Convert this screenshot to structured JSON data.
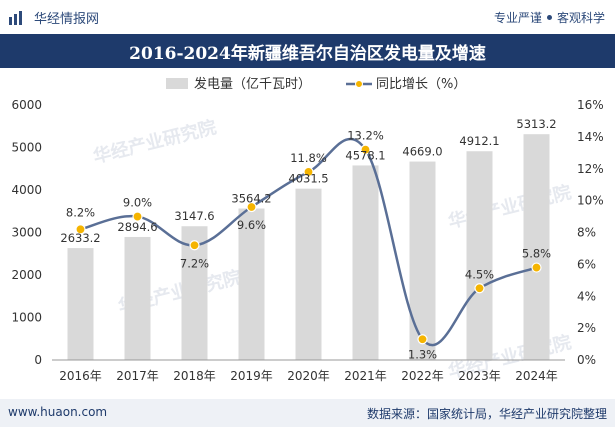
{
  "header": {
    "brand": "华经情报网",
    "tagline_left": "专业严谨",
    "tagline_right": "客观科学"
  },
  "footer": {
    "url": "www.huaon.com",
    "source": "数据来源：国家统计局，华经产业研究院整理"
  },
  "watermark": "华经产业研究院",
  "colors": {
    "title_bg": "#1e3a6b",
    "bar": "#d9d9d9",
    "line": "#5a6f96",
    "marker": "#f5b400"
  },
  "chart_data": {
    "type": "bar",
    "title": "2016-2024年新疆维吾尔自治区发电量及增速",
    "categories": [
      "2016年",
      "2017年",
      "2018年",
      "2019年",
      "2020年",
      "2021年",
      "2022年",
      "2023年",
      "2024年"
    ],
    "series": [
      {
        "name": "发电量（亿千瓦时）",
        "type": "bar",
        "axis": "left",
        "values": [
          2633.2,
          2894.6,
          3147.6,
          3564.2,
          4031.5,
          4578.1,
          4669.0,
          4912.1,
          5313.2
        ],
        "labels": [
          "2633.2",
          "2894.6",
          "3147.6",
          "3564.2",
          "4031.5",
          "4578.1",
          "4669.0",
          "4912.1",
          "5313.2"
        ]
      },
      {
        "name": "同比增长（%）",
        "type": "line",
        "axis": "right",
        "values": [
          8.2,
          9.0,
          7.2,
          9.6,
          11.8,
          13.2,
          1.3,
          4.5,
          5.8
        ],
        "labels": [
          "8.2%",
          "9.0%",
          "7.2%",
          "9.6%",
          "11.8%",
          "13.2%",
          "1.3%",
          "4.5%",
          "5.8%"
        ]
      }
    ],
    "y_left": {
      "min": 0,
      "max": 6000,
      "ticks": [
        "0",
        "1000",
        "2000",
        "3000",
        "4000",
        "5000",
        "6000"
      ]
    },
    "y_right": {
      "min": 0,
      "max": 16,
      "ticks": [
        "0%",
        "2%",
        "4%",
        "6%",
        "8%",
        "10%",
        "12%",
        "14%",
        "16%"
      ]
    },
    "legend": "top-center",
    "grid": false
  }
}
